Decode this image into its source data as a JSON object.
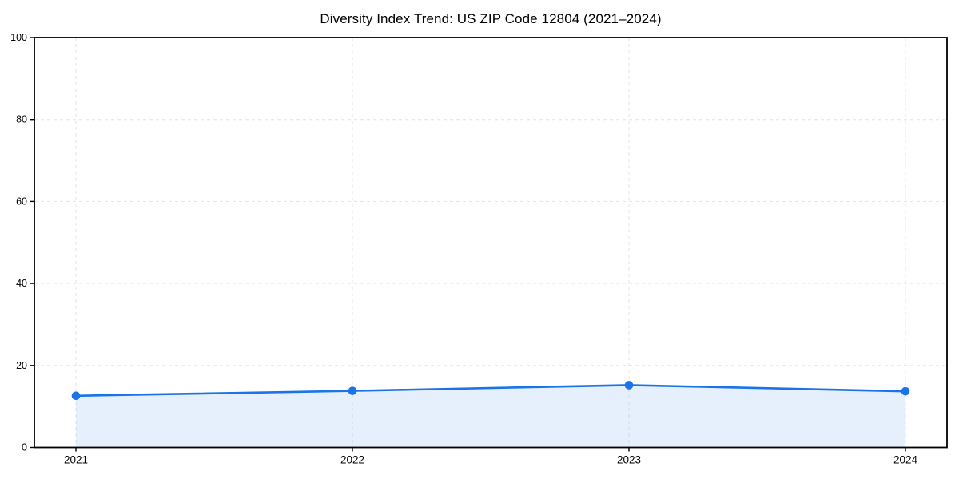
{
  "chart_data": {
    "type": "line",
    "title": "Diversity Index Trend: US ZIP Code 12804 (2021–2024)",
    "categories": [
      "2021",
      "2022",
      "2023",
      "2024"
    ],
    "series": [
      {
        "name": "Diversity Index",
        "values": [
          12.6,
          13.8,
          15.2,
          13.7
        ]
      }
    ],
    "xlabel": "",
    "ylabel": "",
    "ylim": [
      0,
      100
    ],
    "yticks": [
      0,
      20,
      40,
      60,
      80,
      100
    ],
    "grid": true,
    "grid_style": "dashed",
    "legend": "none",
    "marker": "circle",
    "area_fill": true,
    "colors": {
      "line": "#1a73e8",
      "marker": "#1a73e8",
      "area_rgba": "rgba(26,115,232,0.11)",
      "grid": "#e3e3e3",
      "axis": "#000000",
      "tick_text": "#000000",
      "background": "#ffffff"
    }
  }
}
